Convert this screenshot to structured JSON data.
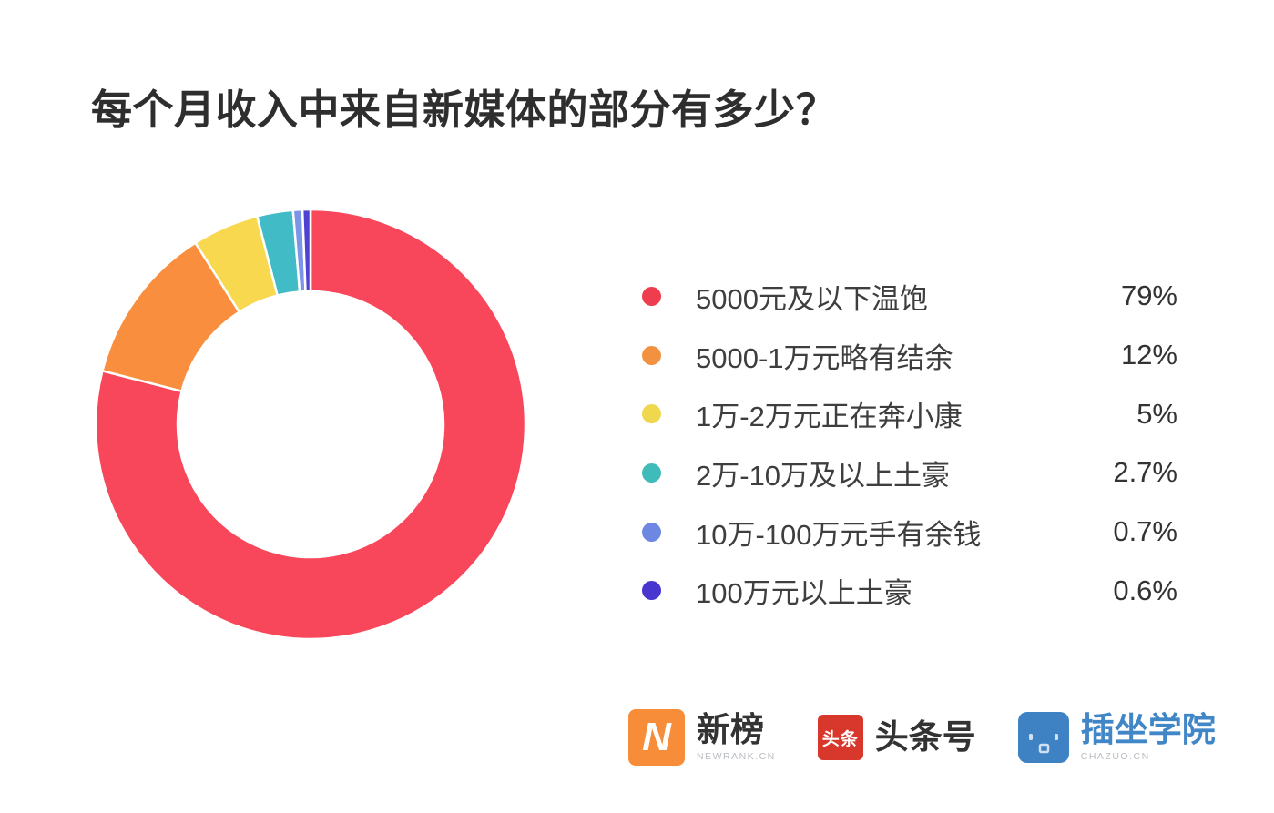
{
  "title": "每个月收入中来自新媒体的部分有多少？",
  "chart_data": {
    "type": "pie",
    "subtype": "donut",
    "title": "每个月收入中来自新媒体的部分有多少？",
    "start_angle_deg": 0,
    "direction": "clockwise",
    "inner_radius_ratio": 0.62,
    "legend_position": "right",
    "categories": [
      "5000元及以下温饱",
      "5000-1万元略有结余",
      "1万-2万元正在奔小康",
      "2万-10万及以上土豪",
      "10万-100万元手有余钱",
      "100万元以上土豪"
    ],
    "values": [
      79,
      12,
      5,
      2.7,
      0.7,
      0.6
    ],
    "value_labels": [
      "79%",
      "12%",
      "5%",
      "2.7%",
      "0.7%",
      "0.6%"
    ],
    "colors": [
      "#f8475a",
      "#f98f3e",
      "#f8d84e",
      "#41bcc6",
      "#7b96e8",
      "#4f41d2"
    ]
  },
  "legend": {
    "items": [
      {
        "label": "5000元及以下温饱",
        "value": "79%",
        "color": "#ee3d4e"
      },
      {
        "label": "5000-1万元略有结余",
        "value": "12%",
        "color": "#f29140"
      },
      {
        "label": "1万-2万元正在奔小康",
        "value": "5%",
        "color": "#efd74e"
      },
      {
        "label": "2万-10万及以上土豪",
        "value": "2.7%",
        "color": "#3fbcba"
      },
      {
        "label": "10万-100万元手有余钱",
        "value": "0.7%",
        "color": "#6e87e2"
      },
      {
        "label": "100万元以上土豪",
        "value": "0.6%",
        "color": "#4836cf"
      }
    ]
  },
  "footer": {
    "logos": [
      {
        "name": "newrank",
        "icon": "newrank-n-icon",
        "icon_text": "N",
        "title": "新榜",
        "subtitle": "NEWRANK.CN",
        "brand_color": "#f78d38"
      },
      {
        "name": "toutiao",
        "icon": "toutiao-icon",
        "icon_text": "头条",
        "title": "头条号",
        "brand_color": "#d8382c"
      },
      {
        "name": "chazuo",
        "icon": "chazuo-face-icon",
        "title": "插坐学院",
        "subtitle": "CHAZUO.CN",
        "brand_color": "#3e82c4"
      }
    ]
  }
}
